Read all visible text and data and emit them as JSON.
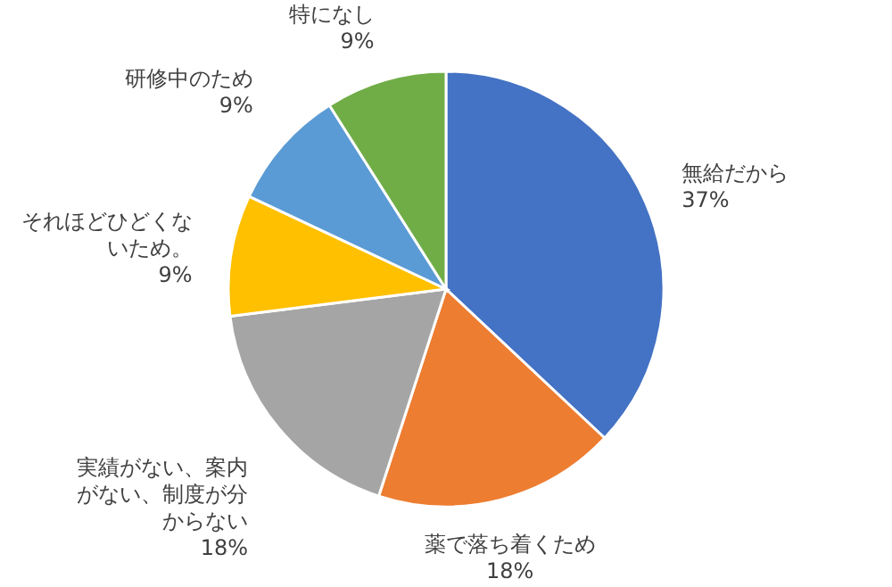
{
  "chart_data": {
    "type": "pie",
    "categories": [
      "無給だから",
      "薬で落ち着くため",
      "実績がない、案内がない、制度が分からない",
      "それほどひどくないため。",
      "研修中のため",
      "特になし"
    ],
    "values": [
      37,
      18,
      18,
      9,
      9,
      9
    ],
    "colors": [
      "#4472c4",
      "#ed7d31",
      "#a5a5a5",
      "#ffc000",
      "#5b9bd5",
      "#70ad47"
    ],
    "value_labels": [
      "37%",
      "18%",
      "18%",
      "9%",
      "9%",
      "9%"
    ]
  }
}
